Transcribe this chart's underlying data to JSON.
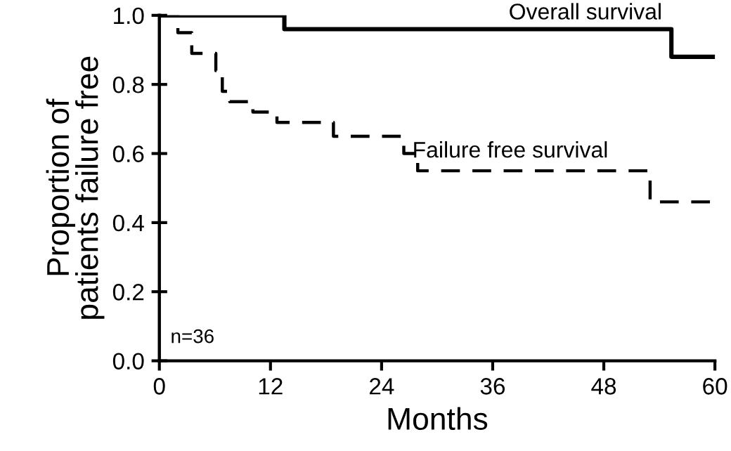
{
  "chart_data": {
    "type": "step",
    "xlabel": "Months",
    "ylabel": "Proportion of\npatients failure free",
    "series": [
      {
        "name": "Overall survival",
        "color": "#000000",
        "line_style": "solid",
        "x": [
          0,
          13.5,
          55.3,
          60
        ],
        "values": [
          1.0,
          0.96,
          0.88,
          0.88
        ]
      },
      {
        "name": "Failure free survival",
        "color": "#000000",
        "line_style": "dashed",
        "x": [
          0,
          2.0,
          3.5,
          6.1,
          6.8,
          7.6,
          10.1,
          12.7,
          18.8,
          26.4,
          27.9,
          53.0,
          60
        ],
        "values": [
          1.0,
          0.95,
          0.89,
          0.84,
          0.78,
          0.75,
          0.72,
          0.69,
          0.65,
          0.6,
          0.55,
          0.46,
          0.46
        ]
      }
    ],
    "annotations": [
      "n=36"
    ],
    "xlim": [
      0,
      60
    ],
    "xticks": [
      0,
      12,
      24,
      36,
      48,
      60
    ],
    "ylim": [
      0,
      1.0
    ],
    "yticks": [
      {
        "value": 0,
        "label": "0.0"
      },
      {
        "value": 0.2,
        "label": "0.2"
      },
      {
        "value": 0.4,
        "label": "0.4"
      },
      {
        "value": 0.6,
        "label": "0.6"
      },
      {
        "value": 0.8,
        "label": "0.8"
      },
      {
        "value": 1.0,
        "label": "1.0"
      }
    ],
    "grid": false,
    "legend": false
  }
}
